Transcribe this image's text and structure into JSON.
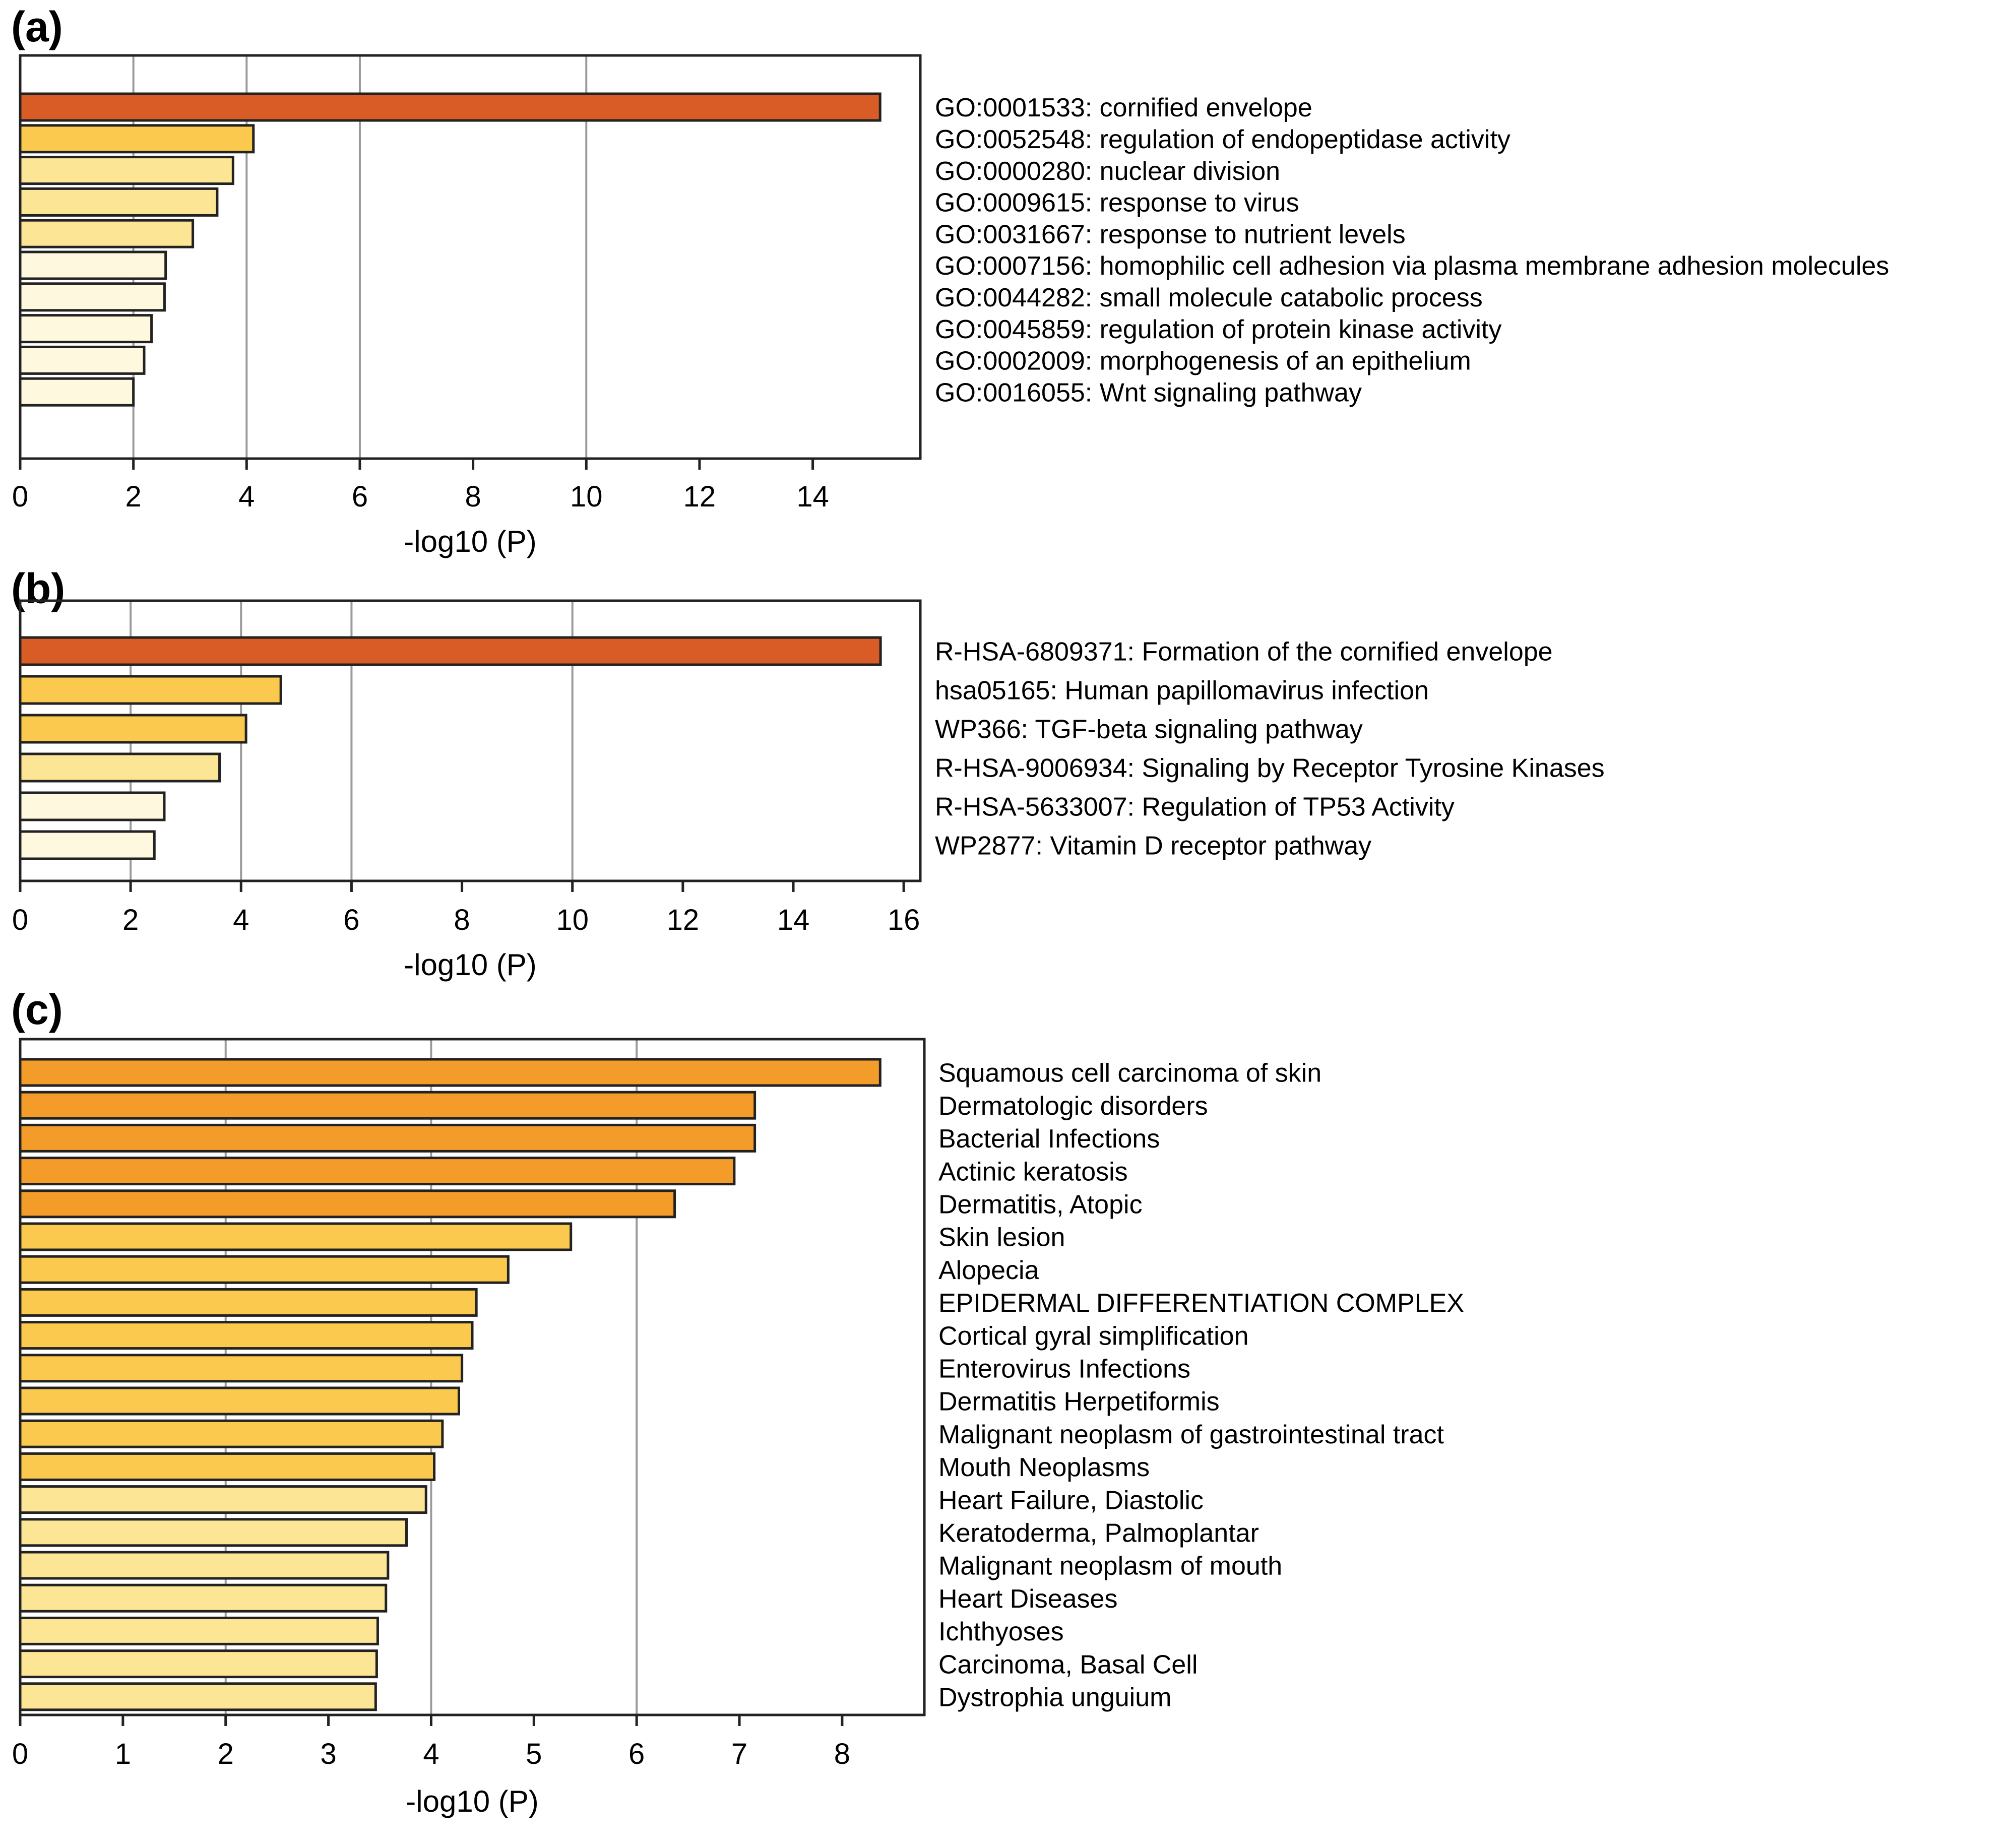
{
  "chart_data": [
    {
      "panel_label": "(a)",
      "type": "bar",
      "orientation": "horizontal",
      "title": "",
      "xlabel": "-log10 (P)",
      "ylabel": "",
      "xlim": [
        0,
        15.9
      ],
      "xticks": [
        "0",
        "2",
        "4",
        "6",
        "8",
        "10",
        "12",
        "14"
      ],
      "xtick_values": [
        0,
        2,
        4,
        6,
        8,
        10,
        12,
        14
      ],
      "gridlines": [
        2,
        4,
        6,
        10
      ],
      "grid": true,
      "categories": [
        "GO:0001533: cornified envelope",
        "GO:0052548: regulation of endopeptidase activity",
        "GO:0000280: nuclear division",
        "GO:0009615: response to virus",
        "GO:0031667: response to nutrient levels",
        "GO:0007156: homophilic cell adhesion via plasma membrane adhesion molecules",
        "GO:0044282: small molecule catabolic process",
        "GO:0045859: regulation of protein kinase activity",
        "GO:0002009: morphogenesis of an epithelium",
        "GO:0016055: Wnt signaling pathway"
      ],
      "values": [
        15.19,
        4.12,
        3.76,
        3.48,
        3.05,
        2.57,
        2.55,
        2.32,
        2.19,
        2.0
      ],
      "colors": [
        "#D95B26",
        "#FAC94E",
        "#FDE596",
        "#FDE596",
        "#FDE596",
        "#FEF9DE",
        "#FEF9DE",
        "#FEF9DE",
        "#FEF9DE",
        "#FEF9DE"
      ]
    },
    {
      "panel_label": "(b)",
      "type": "bar",
      "orientation": "horizontal",
      "title": "",
      "xlabel": "-log10 (P)",
      "ylabel": "",
      "xlim": [
        0,
        16.3
      ],
      "xticks": [
        "0",
        "2",
        "4",
        "6",
        "8",
        "10",
        "12",
        "14",
        "16"
      ],
      "xtick_values": [
        0,
        2,
        4,
        6,
        8,
        10,
        12,
        14,
        16
      ],
      "gridlines": [
        2,
        4,
        6,
        10
      ],
      "grid": true,
      "categories": [
        "R-HSA-6809371: Formation of the cornified envelope",
        "hsa05165: Human papillomavirus infection",
        "WP366: TGF-beta signaling pathway",
        "R-HSA-9006934: Signaling by Receptor Tyrosine Kinases",
        "R-HSA-5633007: Regulation of TP53 Activity",
        "WP2877: Vitamin D receptor pathway"
      ],
      "values": [
        15.58,
        4.72,
        4.09,
        3.61,
        2.61,
        2.43
      ],
      "colors": [
        "#D95B26",
        "#FAC94E",
        "#FAC94E",
        "#FDE596",
        "#FEF9DE",
        "#FEF9DE"
      ]
    },
    {
      "panel_label": "(c)",
      "type": "bar",
      "orientation": "horizontal",
      "title": "",
      "xlabel": "-log10 (P)",
      "ylabel": "",
      "xlim": [
        0,
        8.8
      ],
      "xticks": [
        "0",
        "1",
        "2",
        "3",
        "4",
        "5",
        "6",
        "7",
        "8"
      ],
      "xtick_values": [
        0,
        1,
        2,
        3,
        4,
        5,
        6,
        7,
        8
      ],
      "gridlines": [
        2,
        4,
        6
      ],
      "grid": true,
      "categories": [
        "Squamous cell carcinoma of skin",
        "Dermatologic disorders",
        "Bacterial Infections",
        "Actinic keratosis",
        "Dermatitis, Atopic",
        "Skin lesion",
        "Alopecia",
        "EPIDERMAL DIFFERENTIATION COMPLEX",
        "Cortical gyral simplification",
        "Enterovirus Infections",
        "Dermatitis Herpetiformis",
        "Malignant neoplasm of gastrointestinal tract",
        "Mouth Neoplasms",
        "Heart Failure, Diastolic",
        "Keratoderma, Palmoplantar",
        "Malignant neoplasm of mouth",
        "Heart Diseases",
        "Ichthyoses",
        "Carcinoma, Basal Cell",
        "Dystrophia unguium"
      ],
      "values": [
        8.37,
        7.15,
        7.15,
        6.95,
        6.37,
        5.36,
        4.75,
        4.44,
        4.4,
        4.3,
        4.27,
        4.11,
        4.03,
        3.95,
        3.76,
        3.58,
        3.56,
        3.48,
        3.47,
        3.46
      ],
      "colors": [
        "#F39C2A",
        "#F39C2A",
        "#F39C2A",
        "#F39C2A",
        "#F39C2A",
        "#FAC94E",
        "#FAC94E",
        "#FAC94E",
        "#FAC94E",
        "#FAC94E",
        "#FAC94E",
        "#FAC94E",
        "#FAC94E",
        "#FDE596",
        "#FDE596",
        "#FDE596",
        "#FDE596",
        "#FDE596",
        "#FDE596",
        "#FDE596"
      ]
    }
  ]
}
